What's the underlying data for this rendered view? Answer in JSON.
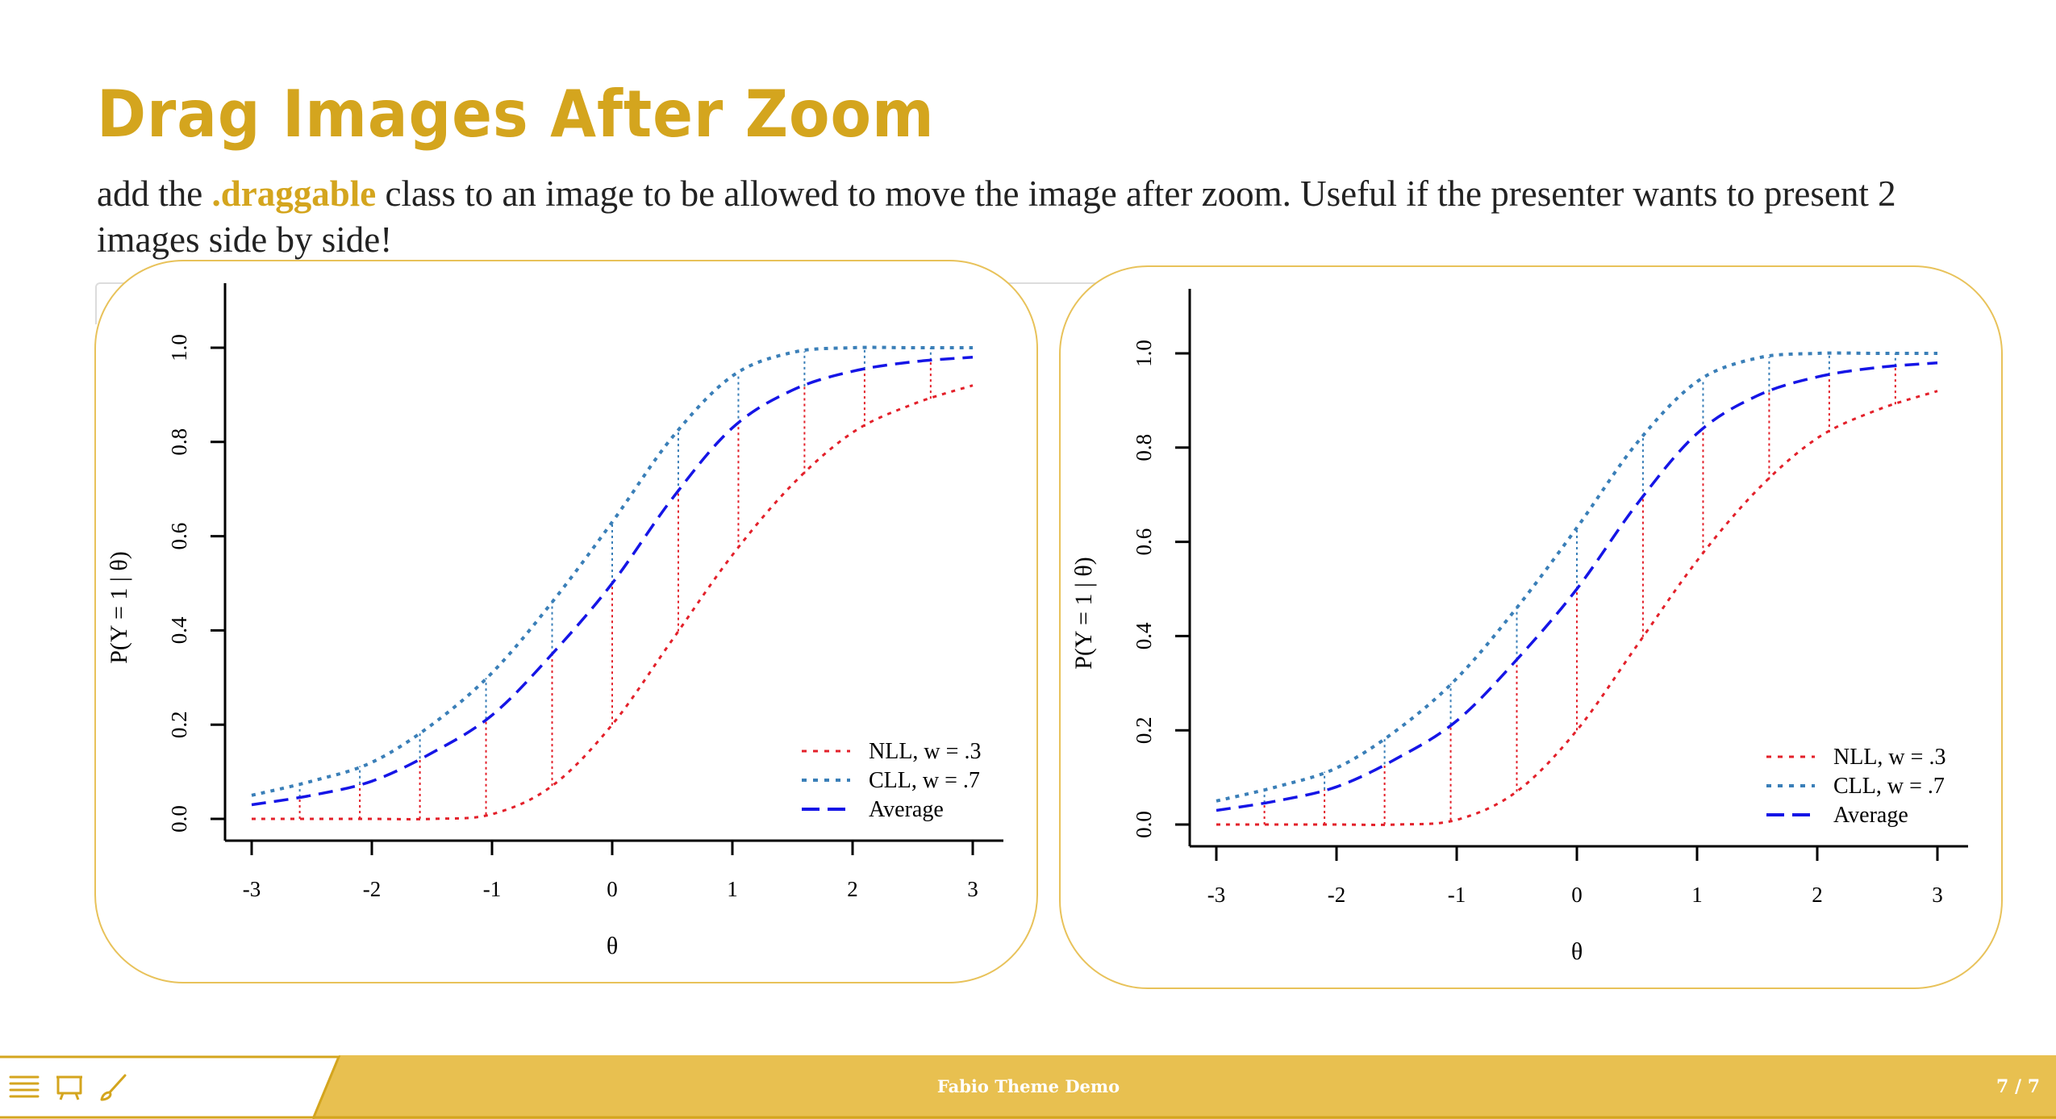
{
  "slide": {
    "title": "Drag Images After Zoom",
    "text_before": "add the ",
    "text_code": ".draggable",
    "text_after": " class to an image to be allowed to move the image after zoom. Useful if the presenter wants to present 2 images side by side!"
  },
  "footer": {
    "title": "Fabio Theme Demo",
    "page": "7 / 7",
    "icons": [
      "menu-icon",
      "presentation-icon",
      "brush-icon"
    ]
  },
  "colors": {
    "accent": "#d4a51e",
    "footer_band": "#e8c050",
    "nll": "#e3202a",
    "cll": "#3a7fb8",
    "average": "#1515e6"
  },
  "chart_data": [
    {
      "type": "line",
      "title": "",
      "xlabel": "θ",
      "ylabel": "P(Y = 1 | θ)",
      "xlim": [
        -3,
        3
      ],
      "ylim": [
        0,
        1
      ],
      "x_ticks": [
        "-3",
        "-2",
        "-1",
        "0",
        "1",
        "2",
        "3"
      ],
      "y_ticks": [
        "0.0",
        "0.2",
        "0.4",
        "0.6",
        "0.8",
        "1.0"
      ],
      "legend_position": "bottom-right",
      "x": [
        -3,
        -2.5,
        -2,
        -1.5,
        -1,
        -0.5,
        0,
        0.5,
        1,
        1.5,
        2,
        2.5,
        3
      ],
      "series": [
        {
          "name": "NLL, w = .3",
          "style": "dotted",
          "values": [
            0.0,
            0.0,
            0.0,
            0.0,
            0.01,
            0.07,
            0.2,
            0.38,
            0.56,
            0.71,
            0.82,
            0.88,
            0.92
          ]
        },
        {
          "name": "CLL, w = .7",
          "style": "dotted",
          "values": [
            0.05,
            0.08,
            0.12,
            0.2,
            0.31,
            0.46,
            0.63,
            0.81,
            0.94,
            0.99,
            1.0,
            1.0,
            1.0
          ]
        },
        {
          "name": "Average",
          "style": "dashed",
          "values": [
            0.03,
            0.05,
            0.08,
            0.14,
            0.22,
            0.35,
            0.5,
            0.68,
            0.83,
            0.91,
            0.95,
            0.97,
            0.98
          ]
        }
      ],
      "vertical_guides_x": [
        -2.6,
        -2.1,
        -1.6,
        -1.05,
        -0.5,
        0,
        0.55,
        1.05,
        1.6,
        2.1,
        2.65
      ]
    },
    {
      "type": "line",
      "title": "",
      "xlabel": "θ",
      "ylabel": "P(Y = 1 | θ)",
      "xlim": [
        -3,
        3
      ],
      "ylim": [
        0,
        1
      ],
      "x_ticks": [
        "-3",
        "-2",
        "-1",
        "0",
        "1",
        "2",
        "3"
      ],
      "y_ticks": [
        "0.0",
        "0.2",
        "0.4",
        "0.6",
        "0.8",
        "1.0"
      ],
      "legend_position": "bottom-right",
      "x": [
        -3,
        -2.5,
        -2,
        -1.5,
        -1,
        -0.5,
        0,
        0.5,
        1,
        1.5,
        2,
        2.5,
        3
      ],
      "series": [
        {
          "name": "NLL, w = .3",
          "style": "dotted",
          "values": [
            0.0,
            0.0,
            0.0,
            0.0,
            0.01,
            0.07,
            0.2,
            0.38,
            0.56,
            0.71,
            0.82,
            0.88,
            0.92
          ]
        },
        {
          "name": "CLL, w = .7",
          "style": "dotted",
          "values": [
            0.05,
            0.08,
            0.12,
            0.2,
            0.31,
            0.46,
            0.63,
            0.81,
            0.94,
            0.99,
            1.0,
            1.0,
            1.0
          ]
        },
        {
          "name": "Average",
          "style": "dashed",
          "values": [
            0.03,
            0.05,
            0.08,
            0.14,
            0.22,
            0.35,
            0.5,
            0.68,
            0.83,
            0.91,
            0.95,
            0.97,
            0.98
          ]
        }
      ],
      "vertical_guides_x": [
        -2.6,
        -2.1,
        -1.6,
        -1.05,
        -0.5,
        0,
        0.55,
        1.05,
        1.6,
        2.1,
        2.65
      ]
    }
  ]
}
